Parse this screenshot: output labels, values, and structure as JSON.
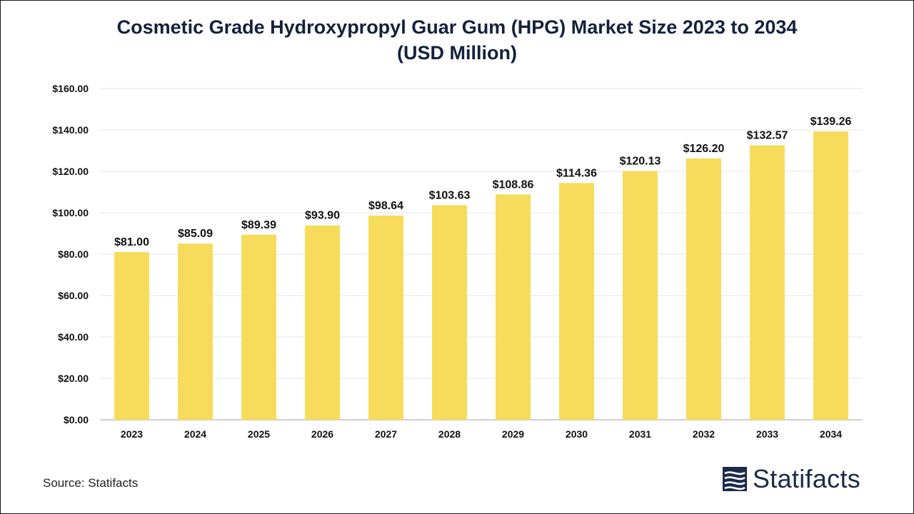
{
  "chart_data": {
    "type": "bar",
    "title": "Cosmetic Grade Hydroxypropyl Guar Gum (HPG) Market Size 2023 to 2034 (USD Million)",
    "categories": [
      "2023",
      "2024",
      "2025",
      "2026",
      "2027",
      "2028",
      "2029",
      "2030",
      "2031",
      "2032",
      "2033",
      "2034"
    ],
    "values": [
      81.0,
      85.09,
      89.39,
      93.9,
      98.64,
      103.63,
      108.86,
      114.36,
      120.13,
      126.2,
      132.57,
      139.26
    ],
    "value_labels": [
      "$81.00",
      "$85.09",
      "$89.39",
      "$93.90",
      "$98.64",
      "$103.63",
      "$108.86",
      "$114.36",
      "$120.13",
      "$126.20",
      "$132.57",
      "$139.26"
    ],
    "y_ticks": [
      "$0.00",
      "$20.00",
      "$40.00",
      "$60.00",
      "$80.00",
      "$100.00",
      "$120.00",
      "$140.00",
      "$160.00"
    ],
    "ylim": [
      0,
      160
    ],
    "xlabel": "",
    "ylabel": "",
    "grid": true,
    "bar_color": "#f7dc5c"
  },
  "source": "Source: Statifacts",
  "brand": "Statifacts",
  "brand_icon": "statifacts-logo-icon",
  "colors": {
    "title": "#14213d",
    "brand": "#1b2a4a",
    "grid": "#e6e6e6"
  }
}
